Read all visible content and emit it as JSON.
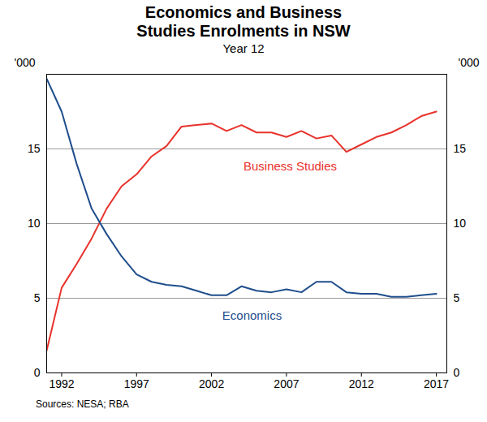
{
  "chart_data": {
    "type": "line",
    "title": "Economics and Business Studies Enrolments in NSW",
    "subtitle": "Year 12",
    "caption": "Sources: NESA; RBA",
    "ylabel": "'000",
    "y2label": "'000",
    "x": [
      1991,
      1992,
      1993,
      1994,
      1995,
      1996,
      1997,
      1998,
      1999,
      2000,
      2001,
      2002,
      2003,
      2004,
      2005,
      2006,
      2007,
      2008,
      2009,
      2010,
      2011,
      2012,
      2013,
      2014,
      2015,
      2016,
      2017
    ],
    "series": [
      {
        "name": "Business Studies",
        "color": "#e8322b",
        "values": [
          1.5,
          5.7,
          7.3,
          9.0,
          11.0,
          12.5,
          13.3,
          14.5,
          15.2,
          16.5,
          16.6,
          16.7,
          16.2,
          16.6,
          16.1,
          16.1,
          15.8,
          16.2,
          15.7,
          15.9,
          14.8,
          15.3,
          15.8,
          16.1,
          16.6,
          17.2,
          17.5
        ]
      },
      {
        "name": "Economics",
        "color": "#1f4e8c",
        "values": [
          19.7,
          17.5,
          14.0,
          11.0,
          9.3,
          7.8,
          6.6,
          6.1,
          5.9,
          5.8,
          5.5,
          5.2,
          5.2,
          5.8,
          5.5,
          5.4,
          5.6,
          5.4,
          6.1,
          6.1,
          5.4,
          5.3,
          5.3,
          5.1,
          5.1,
          5.2,
          5.3
        ]
      }
    ],
    "xlim": [
      1991,
      2017.7
    ],
    "xticks": [
      1992,
      1997,
      2002,
      2007,
      2012,
      2017
    ],
    "ylim": [
      0,
      20
    ],
    "yticks": [
      0,
      5,
      10,
      15
    ],
    "y2lim": [
      0,
      20
    ],
    "y2ticks": [
      0,
      5,
      10,
      15
    ],
    "grid": true,
    "legend": "inline"
  }
}
